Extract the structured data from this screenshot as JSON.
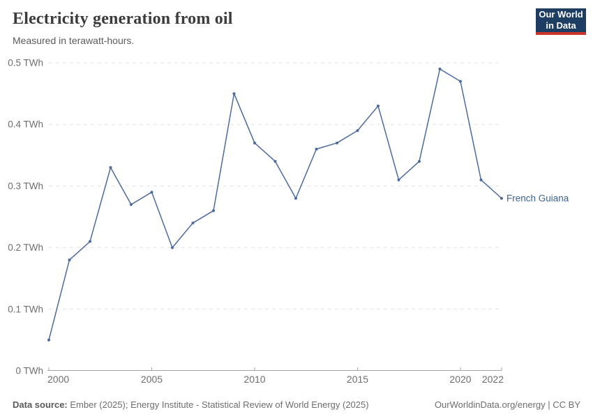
{
  "header": {
    "title": "Electricity generation from oil",
    "subtitle": "Measured in terawatt-hours.",
    "logo": {
      "line1": "Our World",
      "line2": "in Data"
    }
  },
  "chart_data": {
    "type": "line",
    "title": "Electricity generation from oil",
    "unit": "TWh",
    "x": [
      2000,
      2001,
      2002,
      2003,
      2004,
      2005,
      2006,
      2007,
      2008,
      2009,
      2010,
      2011,
      2012,
      2013,
      2014,
      2015,
      2016,
      2017,
      2018,
      2019,
      2020,
      2021,
      2022
    ],
    "series": [
      {
        "name": "French Guiana",
        "values": [
          0.05,
          0.18,
          0.21,
          0.33,
          0.27,
          0.29,
          0.2,
          0.24,
          0.26,
          0.45,
          0.37,
          0.34,
          0.28,
          0.36,
          0.37,
          0.39,
          0.43,
          0.31,
          0.34,
          0.49,
          0.47,
          0.31,
          0.28
        ]
      }
    ],
    "ylim": [
      0,
      0.5
    ],
    "yticks": [
      0,
      0.1,
      0.2,
      0.3,
      0.4,
      0.5
    ],
    "ytick_labels": [
      "0 TWh",
      "0.1 TWh",
      "0.2 TWh",
      "0.3 TWh",
      "0.4 TWh",
      "0.5 TWh"
    ],
    "xticks": [
      2000,
      2005,
      2010,
      2015,
      2020,
      2022
    ],
    "xtick_labels": [
      "2000",
      "2005",
      "2010",
      "2015",
      "2020",
      "2022"
    ],
    "grid": "horizontal-dashed",
    "legend_position": "end-of-line-label",
    "line_color": "#4c6a9c",
    "point_color": "#4c6a9c",
    "series_label_color": "#3d6493",
    "gridline_color": "#e2e2e2",
    "axis_color": "#a5a5a5",
    "tick_label_color": "#6e6e6e"
  },
  "footer": {
    "source_label": "Data source:",
    "source_text": " Ember (2025); Energy Institute - Statistical Review of World Energy (2025)",
    "link_text": "OurWorldinData.org/energy | CC BY"
  }
}
